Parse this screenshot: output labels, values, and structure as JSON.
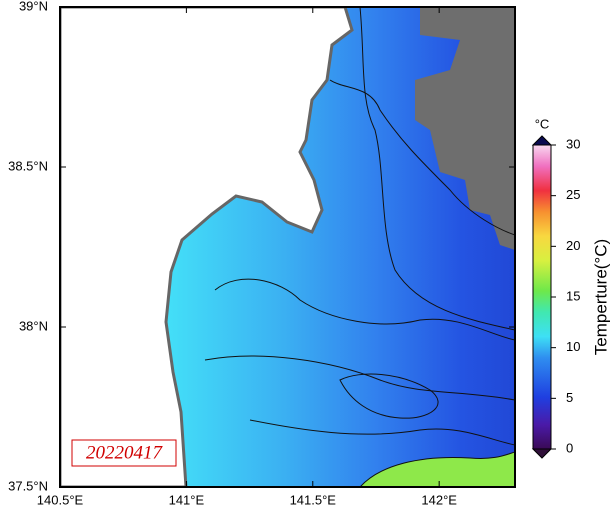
{
  "map": {
    "lonlim": [
      140.5,
      142.3
    ],
    "latlim": [
      37.5,
      39
    ],
    "lon_ticks": [
      {
        "value": 140.5,
        "label": "140.5°E"
      },
      {
        "value": 141,
        "label": "141°E"
      },
      {
        "value": 141.5,
        "label": "141.5°E"
      },
      {
        "value": 142,
        "label": "142°E"
      }
    ],
    "lat_ticks": [
      {
        "value": 37.5,
        "label": "37.5°N"
      },
      {
        "value": 38,
        "label": "38°N"
      },
      {
        "value": 38.5,
        "label": "38.5°N"
      },
      {
        "value": 39,
        "label": "39°N"
      }
    ],
    "date_label": "20220417",
    "colorbar": {
      "unit": "°C",
      "title": "Temperture(°C)",
      "lim": [
        0,
        30
      ],
      "ticks": [
        0,
        5,
        10,
        15,
        20,
        25,
        30
      ]
    }
  }
}
